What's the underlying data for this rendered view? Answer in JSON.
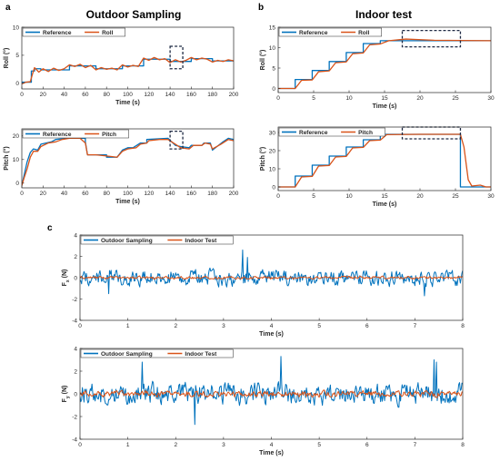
{
  "colors": {
    "reference": "#0072BD",
    "measured": "#D95319",
    "highlight_box": "#1f2a44"
  },
  "panel_letters": [
    "a",
    "b",
    "c"
  ],
  "panel_titles": {
    "outdoor": "Outdoor Sampling",
    "indoor": "Indoor test"
  },
  "chart_data": [
    {
      "id": "a-roll",
      "type": "line",
      "title": "",
      "xlabel": "Time (s)",
      "ylabel": "Roll (°)",
      "xlim": [
        0,
        200
      ],
      "ylim": [
        -1,
        10
      ],
      "xticks": [
        0,
        20,
        40,
        60,
        80,
        100,
        120,
        140,
        160,
        180,
        200
      ],
      "yticks": [
        0,
        5,
        10
      ],
      "legend": "top-left",
      "grid": false,
      "series": [
        {
          "name": "Reference",
          "color": "#0072BD",
          "points": [
            [
              0,
              0.2
            ],
            [
              9,
              0.2
            ],
            [
              9,
              2.2
            ],
            [
              12,
              2.2
            ],
            [
              12,
              2.6
            ],
            [
              18,
              2.6
            ],
            [
              18,
              2.4
            ],
            [
              45,
              2.4
            ],
            [
              45,
              3.1
            ],
            [
              70,
              3.1
            ],
            [
              70,
              2.6
            ],
            [
              95,
              2.6
            ],
            [
              95,
              3.1
            ],
            [
              115,
              3.1
            ],
            [
              115,
              4.3
            ],
            [
              140,
              4.3
            ],
            [
              140,
              3.9
            ],
            [
              160,
              3.9
            ],
            [
              160,
              4.4
            ],
            [
              180,
              4.4
            ],
            [
              180,
              4.0
            ],
            [
              200,
              4.0
            ]
          ]
        },
        {
          "name": "Roll",
          "color": "#D95319",
          "points": [
            [
              0,
              -0.1
            ],
            [
              4,
              0.2
            ],
            [
              8,
              0.3
            ],
            [
              10,
              1.6
            ],
            [
              12,
              2.8
            ],
            [
              14,
              2.4
            ],
            [
              16,
              2.0
            ],
            [
              20,
              2.6
            ],
            [
              25,
              2.1
            ],
            [
              30,
              2.7
            ],
            [
              35,
              2.3
            ],
            [
              40,
              2.6
            ],
            [
              45,
              3.3
            ],
            [
              50,
              3.0
            ],
            [
              55,
              3.4
            ],
            [
              60,
              2.8
            ],
            [
              65,
              3.2
            ],
            [
              70,
              2.4
            ],
            [
              75,
              2.8
            ],
            [
              80,
              2.5
            ],
            [
              85,
              2.7
            ],
            [
              90,
              2.4
            ],
            [
              95,
              3.3
            ],
            [
              100,
              2.9
            ],
            [
              105,
              3.2
            ],
            [
              110,
              3.0
            ],
            [
              115,
              4.5
            ],
            [
              120,
              4.1
            ],
            [
              125,
              4.6
            ],
            [
              130,
              4.2
            ],
            [
              135,
              4.4
            ],
            [
              140,
              3.7
            ],
            [
              145,
              4.2
            ],
            [
              150,
              3.8
            ],
            [
              155,
              4.1
            ],
            [
              160,
              4.6
            ],
            [
              165,
              4.2
            ],
            [
              170,
              4.5
            ],
            [
              175,
              4.3
            ],
            [
              180,
              3.8
            ],
            [
              185,
              4.1
            ],
            [
              190,
              3.9
            ],
            [
              195,
              4.2
            ],
            [
              200,
              4.0
            ]
          ]
        }
      ],
      "highlight_box": {
        "x": [
          140,
          152
        ],
        "y": [
          2.6,
          6.6
        ]
      }
    },
    {
      "id": "a-pitch",
      "type": "line",
      "title": "",
      "xlabel": "Time (s)",
      "ylabel": "Pitch (°)",
      "xlim": [
        0,
        200
      ],
      "ylim": [
        -2,
        23
      ],
      "xticks": [
        0,
        20,
        40,
        60,
        80,
        100,
        120,
        140,
        160,
        180,
        200
      ],
      "yticks": [
        0,
        10,
        20
      ],
      "legend": "top-left",
      "grid": false,
      "series": [
        {
          "name": "Reference",
          "color": "#0072BD",
          "points": [
            [
              0,
              -1
            ],
            [
              2,
              3
            ],
            [
              5,
              9
            ],
            [
              8,
              13
            ],
            [
              11,
              14.5
            ],
            [
              15,
              14
            ],
            [
              18,
              16.5
            ],
            [
              28,
              17.5
            ],
            [
              32,
              18.5
            ],
            [
              42,
              19
            ],
            [
              60,
              19
            ],
            [
              60,
              17.5
            ],
            [
              62,
              12
            ],
            [
              80,
              12
            ],
            [
              80,
              11
            ],
            [
              90,
              11
            ],
            [
              95,
              14
            ],
            [
              100,
              15
            ],
            [
              105,
              15
            ],
            [
              112,
              17
            ],
            [
              118,
              17
            ],
            [
              118,
              18.5
            ],
            [
              138,
              19
            ],
            [
              145,
              16
            ],
            [
              150,
              15.5
            ],
            [
              158,
              15
            ],
            [
              160,
              16
            ],
            [
              170,
              16
            ],
            [
              172,
              17
            ],
            [
              178,
              17
            ],
            [
              180,
              14
            ],
            [
              190,
              17.5
            ],
            [
              195,
              19
            ],
            [
              200,
              18.5
            ]
          ]
        },
        {
          "name": "Pitch",
          "color": "#D95319",
          "points": [
            [
              0,
              -1
            ],
            [
              2,
              2
            ],
            [
              5,
              6
            ],
            [
              8,
              11
            ],
            [
              11,
              13.5
            ],
            [
              15,
              13.5
            ],
            [
              18,
              15.5
            ],
            [
              25,
              17
            ],
            [
              32,
              17.5
            ],
            [
              38,
              18.5
            ],
            [
              45,
              19
            ],
            [
              55,
              19
            ],
            [
              60,
              17
            ],
            [
              62,
              12
            ],
            [
              70,
              12
            ],
            [
              80,
              11.5
            ],
            [
              90,
              11
            ],
            [
              95,
              13.5
            ],
            [
              100,
              14.5
            ],
            [
              108,
              15
            ],
            [
              112,
              16.5
            ],
            [
              118,
              17
            ],
            [
              120,
              18
            ],
            [
              130,
              18.5
            ],
            [
              138,
              18.5
            ],
            [
              145,
              16.5
            ],
            [
              150,
              15
            ],
            [
              158,
              14.5
            ],
            [
              162,
              16
            ],
            [
              170,
              16
            ],
            [
              173,
              17
            ],
            [
              178,
              16.5
            ],
            [
              180,
              14.5
            ],
            [
              188,
              16.5
            ],
            [
              195,
              18.5
            ],
            [
              200,
              18
            ]
          ]
        }
      ],
      "highlight_box": {
        "x": [
          140,
          152
        ],
        "y": [
          14.5,
          22
        ]
      }
    },
    {
      "id": "b-roll",
      "type": "line",
      "title": "",
      "xlabel": "Time (s)",
      "ylabel": "Roll (°)",
      "xlim": [
        0,
        30
      ],
      "ylim": [
        -1,
        15
      ],
      "xticks": [
        0,
        5,
        10,
        15,
        20,
        25,
        30
      ],
      "yticks": [
        0,
        5,
        10,
        15
      ],
      "legend": "top-left",
      "grid": false,
      "series": [
        {
          "name": "Reference",
          "color": "#0072BD",
          "points": [
            [
              0,
              0
            ],
            [
              2.4,
              0
            ],
            [
              2.4,
              2.2
            ],
            [
              4.8,
              2.2
            ],
            [
              4.8,
              4.4
            ],
            [
              7.2,
              4.4
            ],
            [
              7.2,
              6.6
            ],
            [
              9.6,
              6.6
            ],
            [
              9.6,
              8.8
            ],
            [
              12,
              8.8
            ],
            [
              12,
              11
            ],
            [
              14.4,
              11
            ],
            [
              14.4,
              11.7
            ],
            [
              30,
              11.7
            ]
          ]
        },
        {
          "name": "Roll",
          "color": "#D95319",
          "points": [
            [
              0,
              0
            ],
            [
              2.4,
              0
            ],
            [
              3.3,
              2
            ],
            [
              4.8,
              2.1
            ],
            [
              5.7,
              4.1
            ],
            [
              7.2,
              4.3
            ],
            [
              8.1,
              6.3
            ],
            [
              9.6,
              6.5
            ],
            [
              10.5,
              8.5
            ],
            [
              12,
              8.7
            ],
            [
              12.9,
              10.7
            ],
            [
              14.4,
              10.9
            ],
            [
              15.6,
              11.7
            ],
            [
              18,
              12.1
            ],
            [
              22,
              11.8
            ],
            [
              30,
              11.7
            ]
          ]
        }
      ],
      "highlight_box": {
        "x": [
          17.5,
          25.7
        ],
        "y": [
          10.2,
          14.2
        ]
      }
    },
    {
      "id": "b-pitch",
      "type": "line",
      "title": "",
      "xlabel": "Time (s)",
      "ylabel": "Pitch (°)",
      "xlim": [
        0,
        30
      ],
      "ylim": [
        -2,
        33
      ],
      "xticks": [
        0,
        5,
        10,
        15,
        20,
        25,
        30
      ],
      "yticks": [
        0,
        10,
        20,
        30
      ],
      "legend": "top-left",
      "grid": false,
      "series": [
        {
          "name": "Reference",
          "color": "#0072BD",
          "points": [
            [
              0,
              0
            ],
            [
              2.4,
              0
            ],
            [
              2.4,
              6
            ],
            [
              4.8,
              6
            ],
            [
              4.8,
              12
            ],
            [
              7.2,
              12
            ],
            [
              7.2,
              17
            ],
            [
              9.6,
              17
            ],
            [
              9.6,
              22
            ],
            [
              12,
              22
            ],
            [
              12,
              26
            ],
            [
              14.4,
              26
            ],
            [
              14.4,
              29
            ],
            [
              25.7,
              29
            ],
            [
              25.7,
              0
            ],
            [
              30,
              0
            ]
          ]
        },
        {
          "name": "Pitch",
          "color": "#D95319",
          "points": [
            [
              0,
              0
            ],
            [
              2.4,
              0
            ],
            [
              3.3,
              5.5
            ],
            [
              4.8,
              5.8
            ],
            [
              5.7,
              11.5
            ],
            [
              7.2,
              11.8
            ],
            [
              8.1,
              16.5
            ],
            [
              9.6,
              16.8
            ],
            [
              10.5,
              21.5
            ],
            [
              12,
              21.8
            ],
            [
              12.9,
              25.5
            ],
            [
              14.4,
              25.8
            ],
            [
              15.3,
              28.8
            ],
            [
              20,
              29
            ],
            [
              25.7,
              29
            ],
            [
              26.2,
              22
            ],
            [
              26.8,
              4
            ],
            [
              27.3,
              0.5
            ],
            [
              28.5,
              1
            ],
            [
              29.3,
              0
            ],
            [
              30,
              0
            ]
          ]
        }
      ],
      "highlight_box": {
        "x": [
          17.5,
          25.7
        ],
        "y": [
          26.5,
          33
        ]
      }
    },
    {
      "id": "c-fx",
      "type": "line",
      "title": "",
      "xlabel": "Time (s)",
      "ylabel": "F_x (N)",
      "xlim": [
        0,
        8
      ],
      "ylim": [
        -4,
        4
      ],
      "xticks": [
        0,
        1,
        2,
        3,
        4,
        5,
        6,
        7,
        8
      ],
      "yticks": [
        -4,
        -2,
        0,
        2,
        4
      ],
      "legend": "top-left",
      "grid": false,
      "series": [
        {
          "name": "Outdoor Sampling",
          "color": "#0072BD",
          "samples_per_unit": 60,
          "amplitude": 0.85,
          "spikes": [
            [
              3.4,
              2.6
            ],
            [
              3.5,
              1.9
            ],
            [
              7.2,
              -1.7
            ],
            [
              0.6,
              -1.5
            ]
          ]
        },
        {
          "name": "Indoor Test",
          "color": "#D95319",
          "samples_per_unit": 60,
          "amplitude": 0.15
        }
      ]
    },
    {
      "id": "c-fy",
      "type": "line",
      "title": "",
      "xlabel": "Time (s)",
      "ylabel": "F_y (N)",
      "xlim": [
        0,
        8
      ],
      "ylim": [
        -4,
        4
      ],
      "xticks": [
        0,
        1,
        2,
        3,
        4,
        5,
        6,
        7,
        8
      ],
      "yticks": [
        -4,
        -2,
        0,
        2,
        4
      ],
      "legend": "top-left",
      "grid": false,
      "series": [
        {
          "name": "Outdoor Sampling",
          "color": "#0072BD",
          "samples_per_unit": 60,
          "amplitude": 1.1,
          "spikes": [
            [
              7.4,
              3.0
            ],
            [
              7.45,
              2.8
            ],
            [
              2.4,
              -2.7
            ],
            [
              4.2,
              3.3
            ],
            [
              1.3,
              2.8
            ]
          ]
        },
        {
          "name": "Indoor Test",
          "color": "#D95319",
          "samples_per_unit": 60,
          "amplitude": 0.3
        }
      ]
    }
  ]
}
